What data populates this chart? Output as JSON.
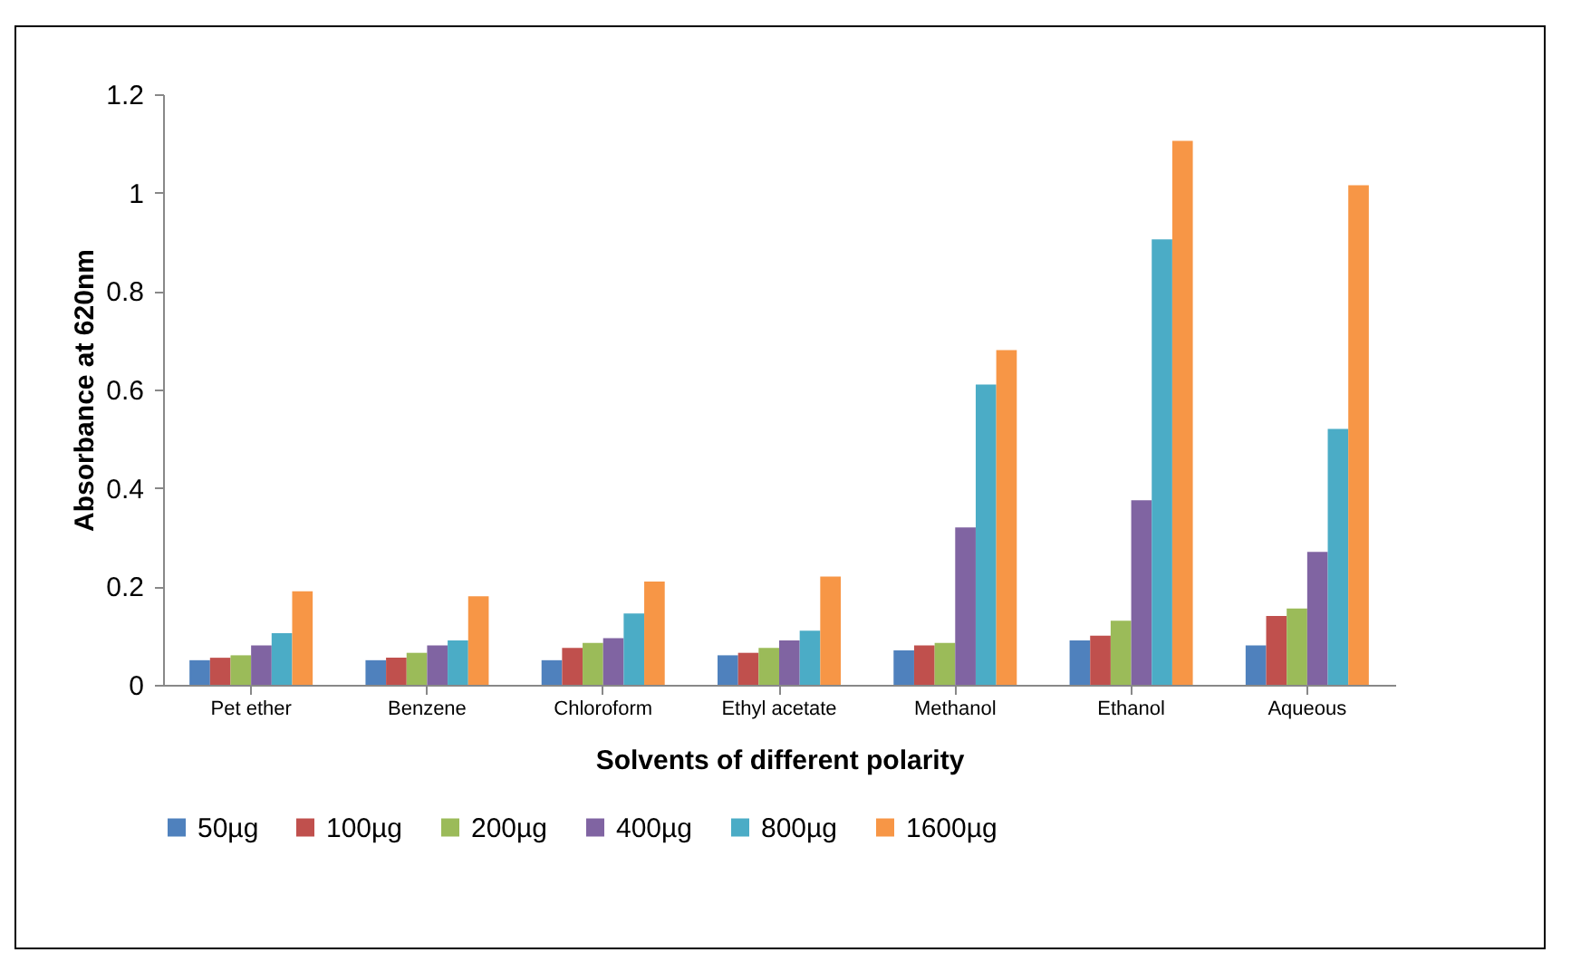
{
  "chart_data": {
    "type": "bar",
    "xlabel": "Solvents of different polarity",
    "ylabel": "Absorbance at 620nm",
    "categories": [
      "Pet ether",
      "Benzene",
      "Chloroform",
      "Ethyl acetate",
      "Methanol",
      "Ethanol",
      "Aqueous"
    ],
    "series": [
      {
        "name": "50µg",
        "color": "#4f81bd",
        "values": [
          0.05,
          0.05,
          0.05,
          0.06,
          0.07,
          0.09,
          0.08
        ]
      },
      {
        "name": "100µg",
        "color": "#c0504d",
        "values": [
          0.055,
          0.055,
          0.075,
          0.065,
          0.08,
          0.1,
          0.14
        ]
      },
      {
        "name": "200µg",
        "color": "#9bbb59",
        "values": [
          0.06,
          0.065,
          0.085,
          0.075,
          0.085,
          0.13,
          0.155
        ]
      },
      {
        "name": "400µg",
        "color": "#8064a2",
        "values": [
          0.08,
          0.08,
          0.095,
          0.09,
          0.32,
          0.375,
          0.27
        ]
      },
      {
        "name": "800µg",
        "color": "#4bacc6",
        "values": [
          0.105,
          0.09,
          0.145,
          0.11,
          0.61,
          0.905,
          0.52
        ]
      },
      {
        "name": "1600µg",
        "color": "#f79646",
        "values": [
          0.19,
          0.18,
          0.21,
          0.22,
          0.68,
          1.105,
          1.015
        ]
      }
    ],
    "ylim": [
      0,
      1.2
    ],
    "yticks": [
      0,
      0.2,
      0.4,
      0.6,
      0.8,
      1,
      1.2
    ],
    "grid": false,
    "legend": "bottom"
  }
}
